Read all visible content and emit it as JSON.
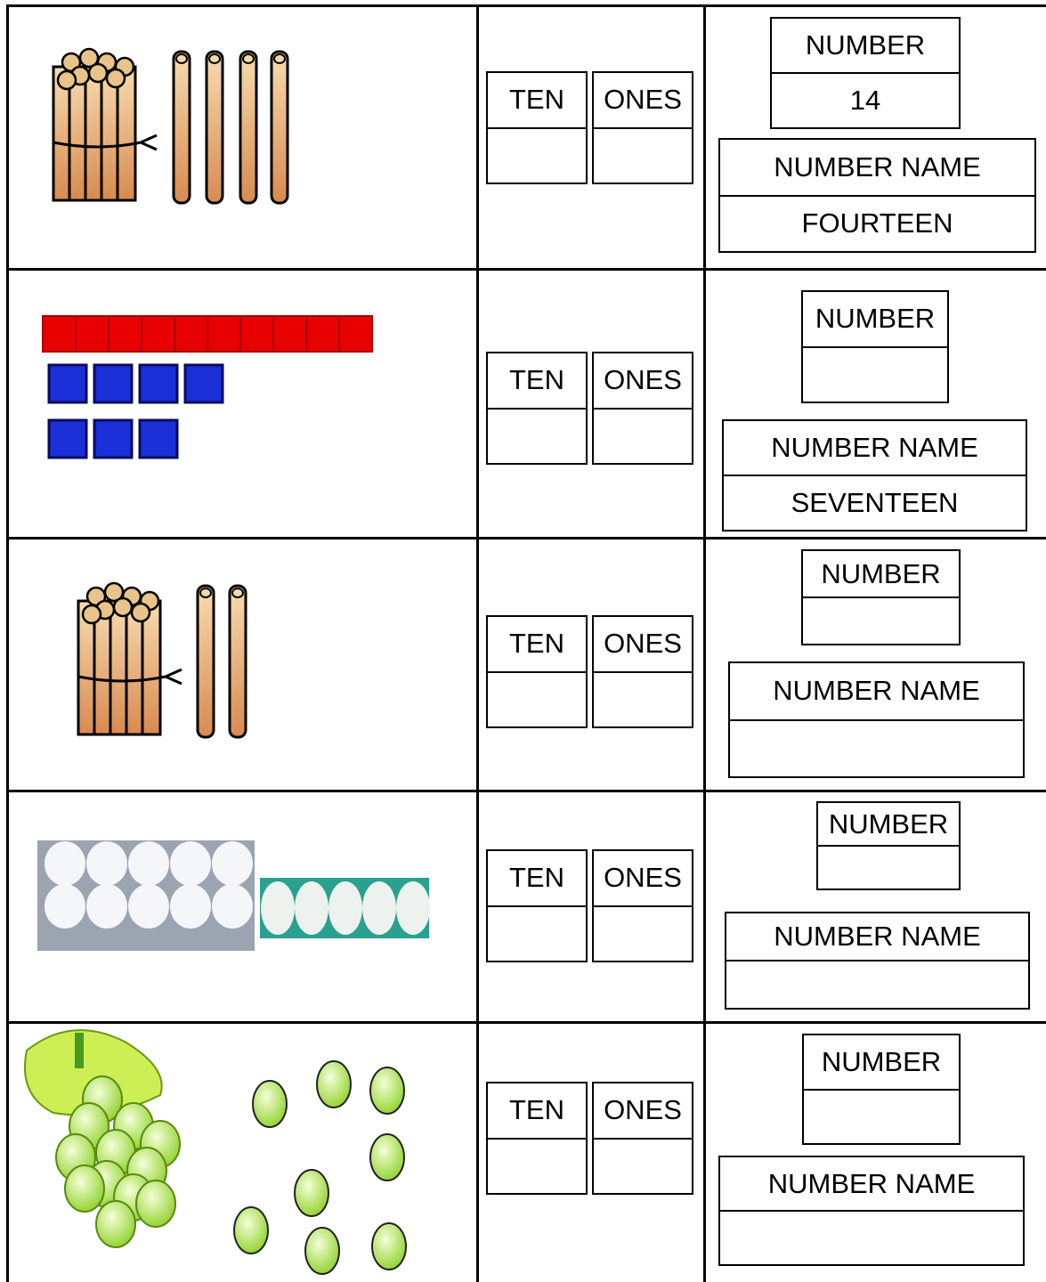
{
  "rows": [
    {
      "ten": "TEN",
      "ones": "ONES",
      "number": "NUMBER",
      "number_value": 14,
      "number_name": "NUMBER NAME",
      "number_name_value": "FOURTEEN"
    },
    {
      "ten": "TEN",
      "ones": "ONES",
      "number": "NUMBER",
      "number_name": "NUMBER NAME",
      "number_name_value": "SEVENTEEN"
    },
    {
      "ten": "TEN",
      "ones": "ONES",
      "number": "NUMBER",
      "number_name": "NUMBER NAME"
    },
    {
      "ten": "TEN",
      "ones": "ONES",
      "number": "NUMBER",
      "number_name": "NUMBER NAME"
    },
    {
      "ten": "TEN",
      "ones": "ONES",
      "number": "NUMBER",
      "number_name": "NUMBER NAME"
    }
  ]
}
